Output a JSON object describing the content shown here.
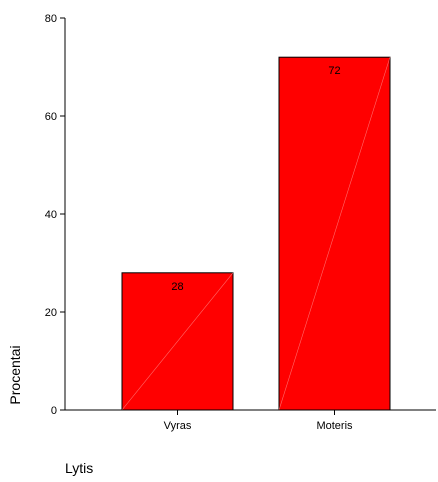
{
  "chart_data": {
    "type": "bar",
    "categories": [
      "Vyras",
      "Moteris"
    ],
    "values": [
      28,
      72
    ],
    "value_labels": [
      "28",
      "72"
    ],
    "xlabel": "Lytis",
    "ylabel": "Procentai",
    "ylim": [
      0,
      80
    ],
    "yticks": [
      0,
      20,
      40,
      60,
      80
    ],
    "ytick_labels": [
      "0",
      "20",
      "40",
      "60",
      "80"
    ],
    "grid": false,
    "legend": "none",
    "colors": {
      "bar_fill": "#ff0000",
      "bar_stroke": "#000000",
      "bar_diagonal": "#ff6a6a",
      "axis": "#000000",
      "background": "#ffffff"
    }
  }
}
